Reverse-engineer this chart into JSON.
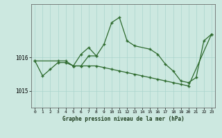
{
  "title": "Graphe pression niveau de la mer (hPa)",
  "background_color": "#cce8e0",
  "grid_color": "#aad4cc",
  "line_color": "#2d6a2d",
  "marker_color": "#2d6a2d",
  "xlim": [
    -0.5,
    23.5
  ],
  "ylim": [
    1014.5,
    1017.6
  ],
  "yticks": [
    1015,
    1016
  ],
  "xticks": [
    0,
    1,
    2,
    3,
    4,
    5,
    6,
    7,
    8,
    9,
    10,
    11,
    12,
    13,
    14,
    15,
    16,
    17,
    18,
    19,
    20,
    21,
    22,
    23
  ],
  "line1_x": [
    0,
    3,
    4,
    5,
    6,
    7,
    8,
    9,
    10,
    11,
    12,
    13,
    14,
    15,
    16,
    17,
    18,
    19,
    20,
    23
  ],
  "line1_y": [
    1015.9,
    1015.9,
    1015.9,
    1015.75,
    1015.75,
    1015.75,
    1015.75,
    1015.7,
    1015.65,
    1015.6,
    1015.55,
    1015.5,
    1015.45,
    1015.4,
    1015.35,
    1015.3,
    1015.25,
    1015.2,
    1015.15,
    1016.7
  ],
  "line2_x": [
    5,
    6,
    7,
    8,
    9,
    10,
    11,
    12,
    13,
    15,
    16,
    17,
    18,
    19,
    20,
    21,
    22,
    23
  ],
  "line2_y": [
    1015.75,
    1016.1,
    1016.3,
    1016.05,
    1016.4,
    1017.05,
    1017.2,
    1016.5,
    1016.35,
    1016.25,
    1016.1,
    1015.8,
    1015.6,
    1015.3,
    1015.25,
    1015.4,
    1016.5,
    1016.7
  ],
  "line3_x": [
    0,
    1,
    2,
    3,
    4,
    5,
    6,
    7,
    8
  ],
  "line3_y": [
    1015.9,
    1015.45,
    1015.65,
    1015.85,
    1015.85,
    1015.75,
    1015.75,
    1016.05,
    1016.05
  ],
  "lw": 0.9,
  "ms": 3.5
}
